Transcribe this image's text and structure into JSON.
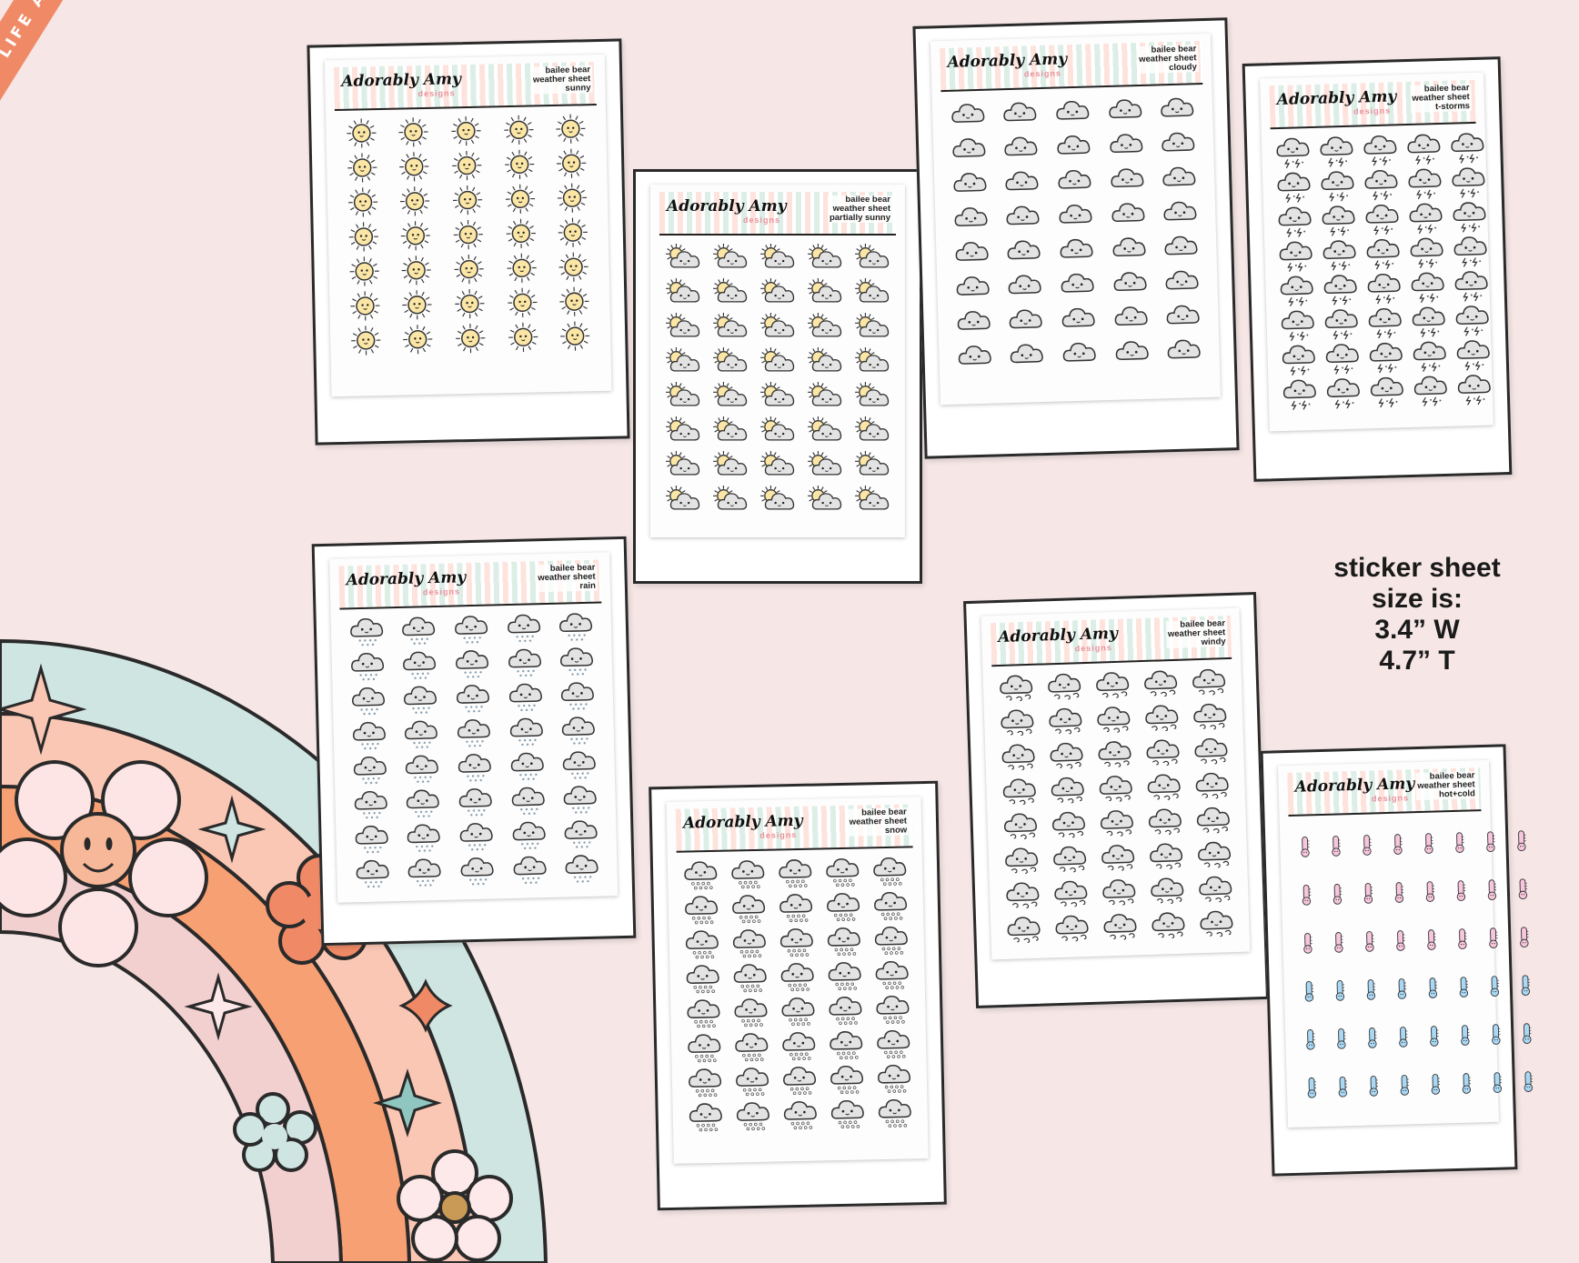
{
  "ribbon": {
    "text": "PLAN LIFE ADORABLY • PLAN LIFE ADORABLY"
  },
  "brand": {
    "name": "Adorably Amy",
    "sub": "designs"
  },
  "sheets": [
    {
      "line1": "bailee bear",
      "line2": "weather sheet",
      "line3": "sunny",
      "icon": "sun-icon",
      "rows": 7,
      "cols": 5
    },
    {
      "line1": "bailee bear",
      "line2": "weather sheet",
      "line3": "partially sunny",
      "icon": "partly-sunny-icon",
      "rows": 8,
      "cols": 5
    },
    {
      "line1": "bailee bear",
      "line2": "weather sheet",
      "line3": "cloudy",
      "icon": "cloud-icon",
      "rows": 8,
      "cols": 5
    },
    {
      "line1": "bailee bear",
      "line2": "weather sheet",
      "line3": "t-storms",
      "icon": "thunderstorm-icon",
      "rows": 8,
      "cols": 5
    },
    {
      "line1": "bailee bear",
      "line2": "weather sheet",
      "line3": "rain",
      "icon": "rain-cloud-icon",
      "rows": 8,
      "cols": 5
    },
    {
      "line1": "bailee bear",
      "line2": "weather sheet",
      "line3": "snow",
      "icon": "snow-cloud-icon",
      "rows": 8,
      "cols": 5
    },
    {
      "line1": "bailee bear",
      "line2": "weather sheet",
      "line3": "windy",
      "icon": "windy-cloud-icon",
      "rows": 8,
      "cols": 5
    },
    {
      "line1": "bailee bear",
      "line2": "weather sheet",
      "line3": "hot+cold",
      "icon": "thermometer-icon",
      "rows": 6,
      "cols": 8
    }
  ],
  "size_note": {
    "line1": "sticker sheet",
    "line2": "size is:",
    "line3": "3.4” W",
    "line4": "4.7” T"
  },
  "colors": {
    "background": "#f6e6e6",
    "ribbon": "#f08a66",
    "sun": "#fbe6a6",
    "cloud": "#e3e3e3",
    "hot": "#f7c6dc",
    "cold": "#a9d8f5"
  }
}
